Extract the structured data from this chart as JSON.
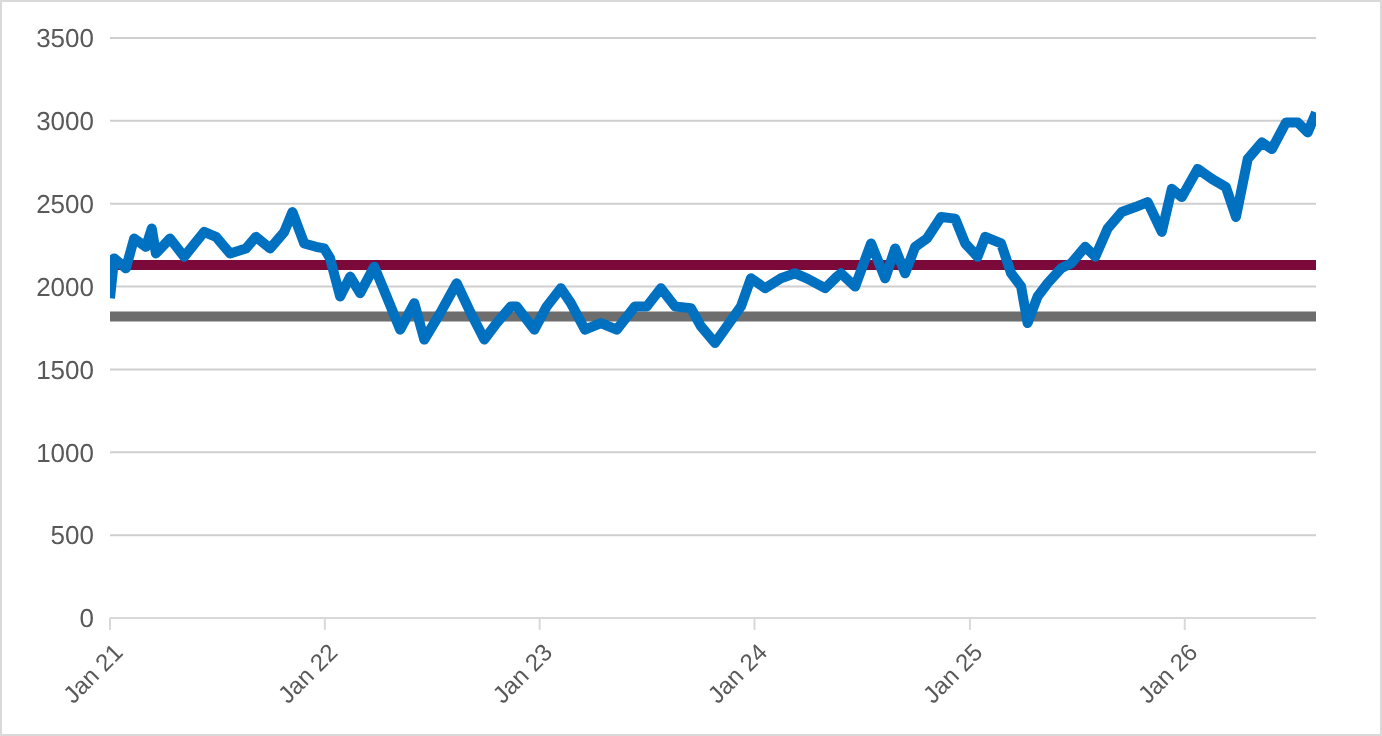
{
  "chart_data": {
    "type": "line",
    "x": [
      "2021-01-01",
      "2021-01-08",
      "2021-01-28",
      "2021-02-11",
      "2021-03-03",
      "2021-03-13",
      "2021-03-20",
      "2021-04-13",
      "2021-05-07",
      "2021-06-10",
      "2021-06-30",
      "2021-07-24",
      "2021-08-20",
      "2021-09-06",
      "2021-09-30",
      "2021-10-24",
      "2021-11-07",
      "2021-11-27",
      "2021-12-17",
      "2021-12-31",
      "2022-01-10",
      "2022-01-27",
      "2022-02-13",
      "2022-03-02",
      "2022-03-26",
      "2022-04-16",
      "2022-05-09",
      "2022-06-02",
      "2022-06-19",
      "2022-07-16",
      "2022-08-13",
      "2022-09-06",
      "2022-09-29",
      "2022-10-20",
      "2022-11-13",
      "2022-11-23",
      "2022-12-23",
      "2023-01-13",
      "2023-02-06",
      "2023-02-23",
      "2023-03-19",
      "2023-04-15",
      "2023-05-12",
      "2023-06-12",
      "2023-07-02",
      "2023-07-26",
      "2023-08-19",
      "2023-09-15",
      "2023-10-02",
      "2023-10-26",
      "2023-11-15",
      "2023-12-09",
      "2023-12-26",
      "2024-01-19",
      "2024-02-15",
      "2024-03-10",
      "2024-03-30",
      "2024-04-30",
      "2024-05-20",
      "2024-05-27",
      "2024-06-20",
      "2024-07-17",
      "2024-08-10",
      "2024-08-27",
      "2024-09-13",
      "2024-09-30",
      "2024-10-20",
      "2024-11-13",
      "2024-12-07",
      "2024-12-24",
      "2025-01-14",
      "2025-01-27",
      "2025-02-23",
      "2025-03-12",
      "2025-03-29",
      "2025-04-09",
      "2025-04-26",
      "2025-05-13",
      "2025-06-05",
      "2025-06-22",
      "2025-07-16",
      "2025-08-02",
      "2025-08-23",
      "2025-09-16",
      "2025-10-09",
      "2025-10-30",
      "2025-11-23",
      "2025-12-10",
      "2025-12-27",
      "2026-01-23",
      "2026-02-16",
      "2026-03-12",
      "2026-03-29",
      "2026-04-18",
      "2026-05-12",
      "2026-05-29",
      "2026-06-22",
      "2026-07-12",
      "2026-07-29",
      "2026-08-12"
    ],
    "series": [
      {
        "color": "#0070c0",
        "values": [
          1930,
          2170,
          2110,
          2290,
          2240,
          2350,
          2200,
          2290,
          2180,
          2330,
          2300,
          2200,
          2230,
          2300,
          2230,
          2330,
          2450,
          2260,
          2240,
          2230,
          2170,
          1940,
          2060,
          1960,
          2120,
          1940,
          1740,
          1900,
          1680,
          1840,
          2020,
          1840,
          1680,
          1780,
          1880,
          1880,
          1740,
          1880,
          1990,
          1900,
          1740,
          1780,
          1740,
          1880,
          1880,
          1990,
          1880,
          1870,
          1760,
          1660,
          1760,
          1880,
          2050,
          1990,
          2050,
          2080,
          2050,
          1990,
          2060,
          2080,
          2000,
          2260,
          2050,
          2230,
          2080,
          2240,
          2290,
          2420,
          2410,
          2260,
          2180,
          2300,
          2260,
          2080,
          2000,
          1780,
          1940,
          2020,
          2110,
          2140,
          2240,
          2180,
          2350,
          2450,
          2480,
          2510,
          2330,
          2590,
          2540,
          2710,
          2650,
          2600,
          2420,
          2770,
          2870,
          2830,
          2990,
          2990,
          2930,
          3050
        ]
      }
    ],
    "xlim": [
      "2021-01-01",
      "2026-08-12"
    ],
    "xticks": [
      {
        "value": "2021-01-01",
        "label": "Jan 21"
      },
      {
        "value": "2022-01-01",
        "label": "Jan 22"
      },
      {
        "value": "2023-01-01",
        "label": "Jan 23"
      },
      {
        "value": "2024-01-01",
        "label": "Jan 24"
      },
      {
        "value": "2025-01-01",
        "label": "Jan 25"
      },
      {
        "value": "2026-01-01",
        "label": "Jan 26"
      }
    ],
    "ylim": [
      0,
      3500
    ],
    "yticks": [
      0,
      500,
      1000,
      1500,
      2000,
      2500,
      3000,
      3500
    ],
    "grid": "y",
    "marker": "none",
    "line_style": "solid",
    "ref_lines": [
      {
        "axis": "y",
        "value": 2130,
        "color": "#7b0a3a"
      },
      {
        "axis": "y",
        "value": 1820,
        "color": "#6d6d6d"
      }
    ]
  }
}
